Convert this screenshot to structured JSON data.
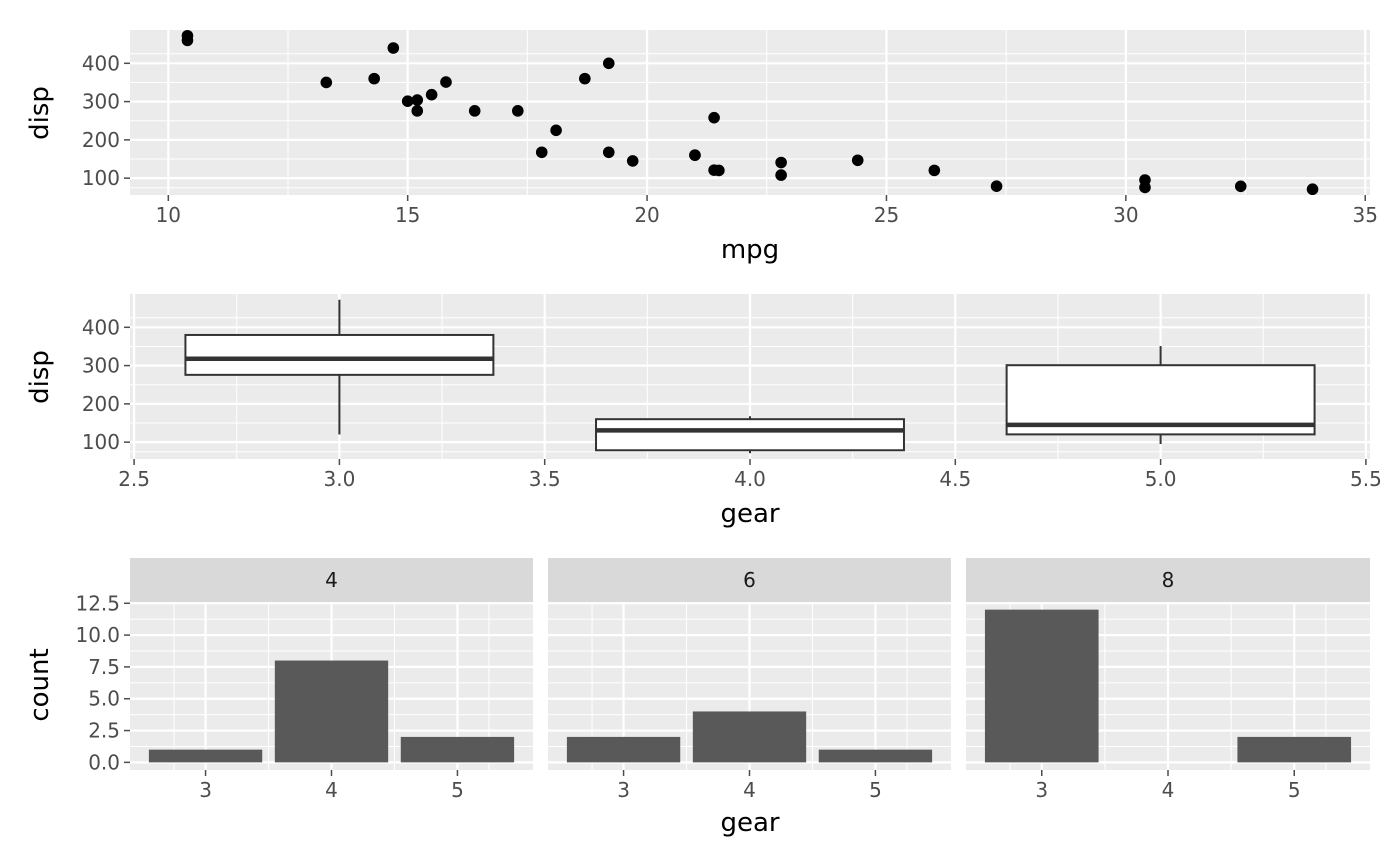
{
  "theme": {
    "panel_bg": "#EBEBEB",
    "grid_major": "#FFFFFF",
    "strip_bg": "#D9D9D9",
    "point_color": "#000000",
    "bar_fill": "#595959",
    "box_line": "#333333",
    "box_fill": "#FFFFFF",
    "tick_color": "#4D4D4D"
  },
  "chart_data": [
    {
      "type": "scatter",
      "xlabel": "mpg",
      "ylabel": "disp",
      "xlim": [
        9.2,
        35.1
      ],
      "ylim": [
        56,
        487
      ],
      "x_ticks": [
        "10",
        "15",
        "20",
        "25",
        "30",
        "35"
      ],
      "y_ticks": [
        "100",
        "200",
        "300",
        "400"
      ],
      "grid": true,
      "points": [
        [
          21.0,
          160
        ],
        [
          21.0,
          160
        ],
        [
          22.8,
          108
        ],
        [
          21.4,
          258
        ],
        [
          18.7,
          360
        ],
        [
          18.1,
          225
        ],
        [
          14.3,
          360
        ],
        [
          24.4,
          146.7
        ],
        [
          22.8,
          140.8
        ],
        [
          19.2,
          167.6
        ],
        [
          17.8,
          167.6
        ],
        [
          16.4,
          275.8
        ],
        [
          17.3,
          275.8
        ],
        [
          15.2,
          275.8
        ],
        [
          10.4,
          472
        ],
        [
          10.4,
          460
        ],
        [
          14.7,
          440
        ],
        [
          32.4,
          78.7
        ],
        [
          30.4,
          75.7
        ],
        [
          33.9,
          71.1
        ],
        [
          21.5,
          120.1
        ],
        [
          15.5,
          318
        ],
        [
          15.2,
          304
        ],
        [
          13.3,
          350
        ],
        [
          19.2,
          400
        ],
        [
          27.3,
          79
        ],
        [
          26.0,
          120.3
        ],
        [
          30.4,
          95.1
        ],
        [
          15.8,
          351
        ],
        [
          19.7,
          145
        ],
        [
          15.0,
          301
        ],
        [
          21.4,
          121
        ]
      ]
    },
    {
      "type": "box",
      "xlabel": "gear",
      "ylabel": "disp",
      "xlim": [
        2.49,
        5.51
      ],
      "ylim": [
        56,
        487
      ],
      "x_ticks": [
        "2.5",
        "3.0",
        "3.5",
        "4.0",
        "4.5",
        "5.0",
        "5.5"
      ],
      "y_ticks": [
        "100",
        "200",
        "300",
        "400"
      ],
      "grid": true,
      "boxes": [
        {
          "x": 3,
          "lower_whisker": 120.1,
          "q1": 275.8,
          "median": 318,
          "q3": 380,
          "upper_whisker": 472
        },
        {
          "x": 4,
          "lower_whisker": 71.1,
          "q1": 78.85,
          "median": 130.9,
          "q3": 160,
          "upper_whisker": 167.6
        },
        {
          "x": 5,
          "lower_whisker": 95.1,
          "q1": 120.3,
          "median": 145,
          "q3": 301,
          "upper_whisker": 351
        }
      ]
    },
    {
      "type": "bar",
      "facet_by": "cyl",
      "xlabel": "gear",
      "ylabel": "count",
      "ylim": [
        -0.6,
        12.6
      ],
      "y_ticks": [
        "0.0",
        "2.5",
        "5.0",
        "7.5",
        "10.0",
        "12.5"
      ],
      "categories": [
        "3",
        "4",
        "5"
      ],
      "grid": true,
      "facets": [
        {
          "label": "4",
          "values": [
            1,
            8,
            2
          ]
        },
        {
          "label": "6",
          "values": [
            2,
            4,
            1
          ]
        },
        {
          "label": "8",
          "values": [
            12,
            0,
            2
          ]
        }
      ]
    }
  ]
}
